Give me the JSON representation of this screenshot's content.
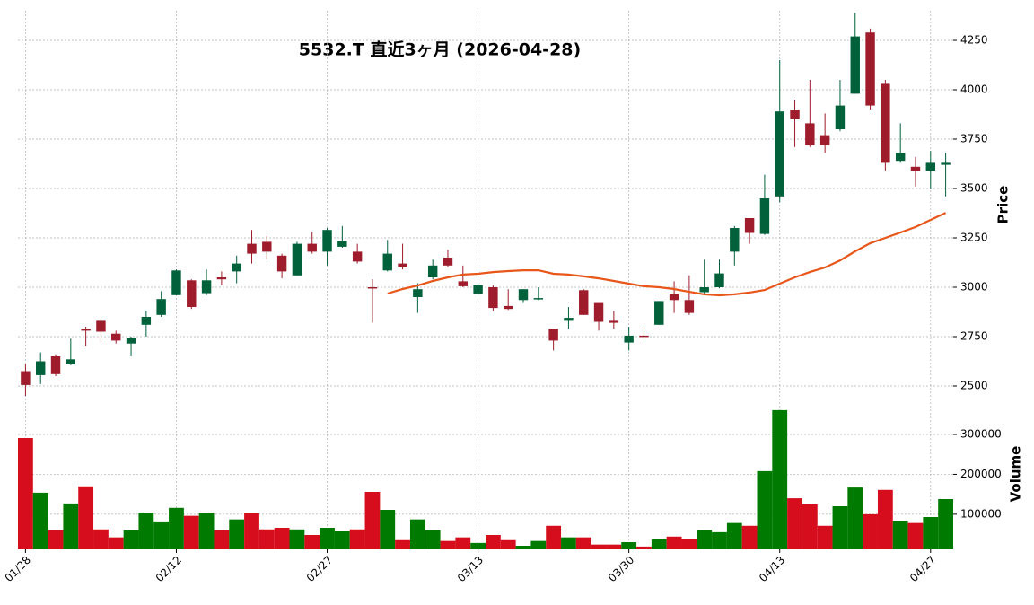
{
  "chart_data": {
    "type": "candlestick",
    "title": "5532.T  直近3ヶ月  (2026-04-28)",
    "categories": [
      "01/28",
      null,
      null,
      null,
      null,
      null,
      null,
      null,
      null,
      null,
      "02/12",
      null,
      null,
      null,
      null,
      null,
      null,
      null,
      null,
      null,
      "02/27",
      null,
      null,
      null,
      null,
      null,
      null,
      null,
      null,
      null,
      "03/13",
      null,
      null,
      null,
      null,
      null,
      null,
      null,
      null,
      null,
      "03/30",
      null,
      null,
      null,
      null,
      null,
      null,
      null,
      null,
      null,
      "04/13",
      null,
      null,
      null,
      null,
      null,
      null,
      null,
      null,
      null,
      "04/27",
      null
    ],
    "open": [
      2575,
      2555,
      2650,
      2610,
      2790,
      2830,
      2765,
      2715,
      2810,
      2860,
      2960,
      3035,
      2970,
      3050,
      3080,
      3220,
      3230,
      3160,
      3060,
      3220,
      3180,
      3205,
      3180,
      3000,
      3085,
      3120,
      2950,
      3050,
      3150,
      3030,
      2965,
      3000,
      2905,
      2935,
      2940,
      2790,
      2830,
      2985,
      2920,
      2830,
      2720,
      2755,
      2810,
      2965,
      2935,
      2975,
      3000,
      3180,
      3350,
      3270,
      3460,
      3900,
      3830,
      3770,
      3800,
      3980,
      4290,
      4030,
      3640,
      3610,
      3590,
      3620
    ],
    "high": [
      2610,
      2670,
      2660,
      2740,
      2800,
      2840,
      2780,
      2750,
      2880,
      2980,
      3090,
      3040,
      3090,
      3080,
      3160,
      3290,
      3260,
      3170,
      3230,
      3280,
      3300,
      3310,
      3220,
      3040,
      3240,
      3220,
      3020,
      3140,
      3190,
      3110,
      3020,
      3010,
      2990,
      2990,
      3000,
      2790,
      2900,
      2990,
      2920,
      2880,
      2800,
      2800,
      2930,
      3030,
      3060,
      3140,
      3140,
      3310,
      3350,
      3570,
      4150,
      3950,
      4050,
      3880,
      4050,
      4390,
      4310,
      4050,
      3830,
      3660,
      3690,
      3680
    ],
    "low": [
      2450,
      2510,
      2550,
      2605,
      2700,
      2720,
      2715,
      2650,
      2750,
      2850,
      2960,
      2890,
      2960,
      3010,
      3020,
      3120,
      3140,
      3045,
      3060,
      3170,
      3110,
      3200,
      3120,
      2820,
      3080,
      3090,
      2870,
      3040,
      3100,
      3000,
      2960,
      2880,
      2885,
      2920,
      2935,
      2680,
      2790,
      2860,
      2780,
      2790,
      2680,
      2730,
      2810,
      2870,
      2860,
      2965,
      2995,
      3110,
      3220,
      3265,
      3430,
      3710,
      3710,
      3680,
      3790,
      3980,
      3900,
      3590,
      3630,
      3510,
      3500,
      3460
    ],
    "close": [
      2505,
      2625,
      2560,
      2635,
      2780,
      2775,
      2730,
      2745,
      2850,
      2940,
      3085,
      2900,
      3035,
      3040,
      3120,
      3170,
      3180,
      3080,
      3220,
      3180,
      3290,
      3235,
      3130,
      2995,
      3170,
      3100,
      2990,
      3110,
      3110,
      3005,
      3010,
      2895,
      2890,
      2990,
      2945,
      2730,
      2845,
      2860,
      2825,
      2820,
      2755,
      2750,
      2930,
      2935,
      2870,
      3000,
      3070,
      3300,
      3275,
      3450,
      3890,
      3850,
      3720,
      3720,
      3920,
      4270,
      3920,
      3630,
      3680,
      3590,
      3630,
      3630
    ],
    "volume": [
      291000,
      154000,
      60000,
      127000,
      170000,
      62000,
      42000,
      60000,
      104000,
      82000,
      116000,
      96000,
      104000,
      60000,
      87000,
      102000,
      62000,
      66000,
      62000,
      48000,
      66000,
      57000,
      62000,
      156000,
      111000,
      35000,
      87000,
      60000,
      33000,
      42000,
      28000,
      48000,
      35000,
      21000,
      33000,
      71000,
      42000,
      42000,
      24000,
      24000,
      30000,
      19000,
      37000,
      44000,
      39000,
      60000,
      55000,
      78000,
      71000,
      208000,
      361000,
      140000,
      125000,
      71000,
      120000,
      167000,
      100000,
      161000,
      84000,
      78000,
      93000,
      138000
    ],
    "moving_average": {
      "color": "#e8561a",
      "values": [
        null,
        null,
        null,
        null,
        null,
        null,
        null,
        null,
        null,
        null,
        null,
        null,
        null,
        null,
        null,
        null,
        null,
        null,
        null,
        null,
        null,
        null,
        null,
        null,
        2968,
        2991,
        3009,
        3032,
        3050,
        3064,
        3068,
        3077,
        3082,
        3086,
        3086,
        3068,
        3064,
        3055,
        3045,
        3032,
        3018,
        3005,
        3000,
        2991,
        2977,
        2964,
        2959,
        2964,
        2973,
        2986,
        3018,
        3050,
        3077,
        3100,
        3136,
        3182,
        3223,
        3250,
        3277,
        3305,
        3341,
        3377
      ]
    },
    "up_color": "#00613a",
    "down_color": "#9e1c2b",
    "volume_up_color": "#007a00",
    "volume_down_color": "#d60d1c",
    "ylabel": "Price",
    "y2label": "Volume",
    "ylim": [
      2400,
      4400
    ],
    "yticks": [
      2500,
      2750,
      3000,
      3250,
      3500,
      3750,
      4000,
      4250
    ],
    "y2lim": [
      12000,
      372000
    ],
    "y2ticks": [
      100000,
      200000,
      300000
    ],
    "grid": true
  }
}
